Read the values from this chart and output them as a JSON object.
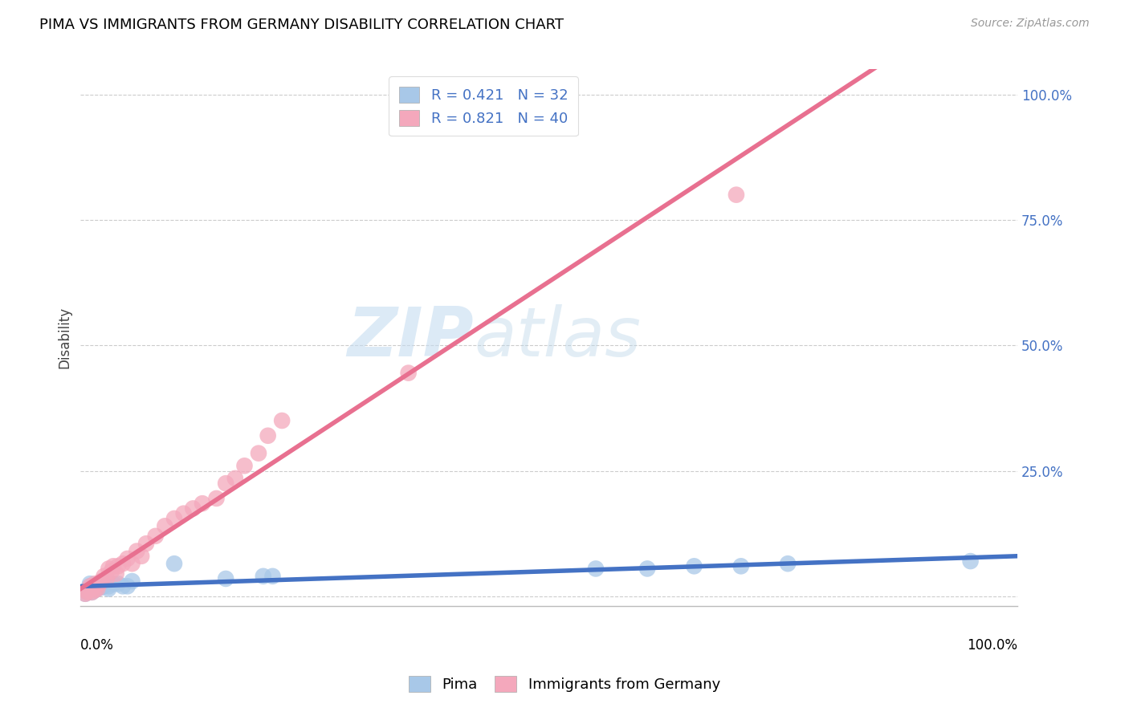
{
  "title": "PIMA VS IMMIGRANTS FROM GERMANY DISABILITY CORRELATION CHART",
  "source_text": "Source: ZipAtlas.com",
  "ylabel": "Disability",
  "pima_R": 0.421,
  "pima_N": 32,
  "germany_R": 0.821,
  "germany_N": 40,
  "pima_color": "#A8C8E8",
  "germany_color": "#F4A8BC",
  "pima_line_color": "#4472C4",
  "germany_line_color": "#E87090",
  "legend_label_pima": "Pima",
  "legend_label_germany": "Immigrants from Germany",
  "watermark_zip": "ZIP",
  "watermark_atlas": "atlas",
  "pima_x": [
    0.005,
    0.007,
    0.008,
    0.01,
    0.01,
    0.012,
    0.013,
    0.015,
    0.015,
    0.018,
    0.02,
    0.02,
    0.022,
    0.025,
    0.028,
    0.03,
    0.03,
    0.035,
    0.04,
    0.045,
    0.05,
    0.055,
    0.1,
    0.155,
    0.195,
    0.205,
    0.55,
    0.605,
    0.655,
    0.705,
    0.755,
    0.95
  ],
  "pima_y": [
    0.005,
    0.01,
    0.015,
    0.02,
    0.025,
    0.008,
    0.018,
    0.012,
    0.022,
    0.015,
    0.02,
    0.025,
    0.018,
    0.02,
    0.025,
    0.015,
    0.02,
    0.025,
    0.025,
    0.02,
    0.02,
    0.03,
    0.065,
    0.035,
    0.04,
    0.04,
    0.055,
    0.055,
    0.06,
    0.06,
    0.065,
    0.07
  ],
  "germany_x": [
    0.005,
    0.007,
    0.008,
    0.01,
    0.01,
    0.012,
    0.013,
    0.015,
    0.015,
    0.018,
    0.02,
    0.022,
    0.025,
    0.028,
    0.03,
    0.033,
    0.035,
    0.038,
    0.04,
    0.045,
    0.05,
    0.055,
    0.06,
    0.065,
    0.07,
    0.08,
    0.09,
    0.1,
    0.11,
    0.12,
    0.13,
    0.145,
    0.155,
    0.165,
    0.175,
    0.19,
    0.2,
    0.215,
    0.35,
    0.7
  ],
  "germany_y": [
    0.005,
    0.008,
    0.01,
    0.015,
    0.02,
    0.008,
    0.018,
    0.012,
    0.025,
    0.015,
    0.025,
    0.03,
    0.04,
    0.035,
    0.055,
    0.05,
    0.06,
    0.045,
    0.06,
    0.065,
    0.075,
    0.065,
    0.09,
    0.08,
    0.105,
    0.12,
    0.14,
    0.155,
    0.165,
    0.175,
    0.185,
    0.195,
    0.225,
    0.235,
    0.26,
    0.285,
    0.32,
    0.35,
    0.445,
    0.8
  ],
  "xlim": [
    0.0,
    1.0
  ],
  "ylim": [
    -0.02,
    1.05
  ],
  "ytick_vals": [
    0.0,
    0.25,
    0.5,
    0.75,
    1.0
  ],
  "ytick_labels": [
    "",
    "25.0%",
    "50.0%",
    "75.0%",
    "100.0%"
  ],
  "grid_color": "#CCCCCC",
  "tick_color": "#4472C4",
  "title_fontsize": 13,
  "source_fontsize": 10,
  "axis_label_fontsize": 12,
  "tick_fontsize": 12,
  "legend_fontsize": 13
}
